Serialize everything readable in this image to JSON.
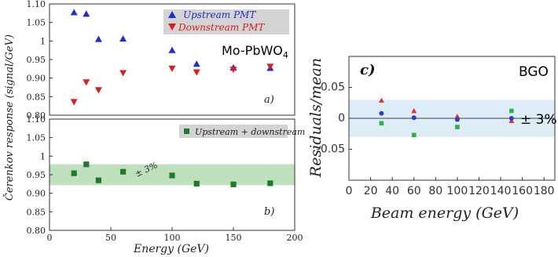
{
  "chart_data": [
    {
      "type": "scatter",
      "panel_label": "a)",
      "annotation": "Mo-PbWO",
      "annotation_subscript": "4",
      "xlim": [
        0,
        200
      ],
      "ylim": [
        0.8,
        1.1
      ],
      "yticks": [
        "0.80",
        "0.85",
        "0.90",
        "0.95",
        "1",
        "1.05",
        "1.10"
      ],
      "ytick_values": [
        0.8,
        0.85,
        0.9,
        0.95,
        1.0,
        1.05,
        1.1
      ],
      "legend_position": "top-right",
      "series": [
        {
          "name": "Upstream PMT",
          "marker": "triangle-up",
          "color": "#1f2fcf",
          "x": [
            20,
            30,
            40,
            60,
            100,
            120,
            150,
            180
          ],
          "y": [
            1.077,
            1.073,
            1.005,
            1.006,
            0.975,
            0.938,
            0.928,
            0.927
          ]
        },
        {
          "name": "Downstream PMT",
          "marker": "triangle-down",
          "color": "#d42020",
          "x": [
            20,
            30,
            40,
            60,
            100,
            120,
            150,
            180
          ],
          "y": [
            0.836,
            0.889,
            0.868,
            0.914,
            0.926,
            0.916,
            0.923,
            0.931
          ]
        }
      ]
    },
    {
      "type": "scatter",
      "panel_label": "b)",
      "xlabel": "Energy (GeV)",
      "shared_ylabel": "Čerenkov response (signal/GeV)",
      "xlim": [
        0,
        200
      ],
      "ylim": [
        0.8,
        1.1
      ],
      "xticks": [
        0,
        50,
        100,
        150,
        200
      ],
      "yticks": [
        "0.80",
        "0.85",
        "0.90",
        "0.95",
        "1",
        "1.05",
        "1.10"
      ],
      "ytick_values": [
        0.8,
        0.85,
        0.9,
        0.95,
        1.0,
        1.05,
        1.1
      ],
      "band": {
        "low": 0.922,
        "high": 0.978,
        "label": "± 3%",
        "color": "#bfe0bd"
      },
      "legend_position": "top-right",
      "series": [
        {
          "name": "Upstream + downstream",
          "marker": "square",
          "color": "#1f7a2a",
          "x": [
            20,
            30,
            40,
            60,
            100,
            120,
            150,
            180
          ],
          "y": [
            0.954,
            0.978,
            0.935,
            0.958,
            0.948,
            0.926,
            0.924,
            0.927
          ]
        }
      ]
    },
    {
      "type": "scatter",
      "panel_label": "c)",
      "annotation": "BGO",
      "xlabel": "Beam energy (GeV)",
      "ylabel": "Residuals/mean",
      "xlim": [
        0,
        190
      ],
      "ylim": [
        -0.1,
        0.1
      ],
      "xticks": [
        0,
        20,
        40,
        60,
        80,
        100,
        120,
        140,
        160,
        180
      ],
      "yticks": [
        "0.05",
        "0",
        "-0.05"
      ],
      "ytick_values": [
        0.05,
        0.0,
        -0.05
      ],
      "band": {
        "low": -0.03,
        "high": 0.03,
        "label": "± 3%",
        "color": "#dcedf8"
      },
      "series": [
        {
          "marker": "triangle-up",
          "color": "#e03030",
          "x": [
            30,
            60,
            100,
            150
          ],
          "y": [
            0.029,
            0.012,
            0.003,
            -0.004
          ]
        },
        {
          "marker": "circle",
          "color": "#2a3fc8",
          "x": [
            30,
            60,
            100,
            150
          ],
          "y": [
            0.008,
            0.001,
            -0.002,
            0.0
          ]
        },
        {
          "marker": "square",
          "color": "#2fae4a",
          "x": [
            30,
            60,
            100,
            150
          ],
          "y": [
            -0.008,
            -0.027,
            -0.014,
            0.012
          ]
        }
      ]
    }
  ]
}
